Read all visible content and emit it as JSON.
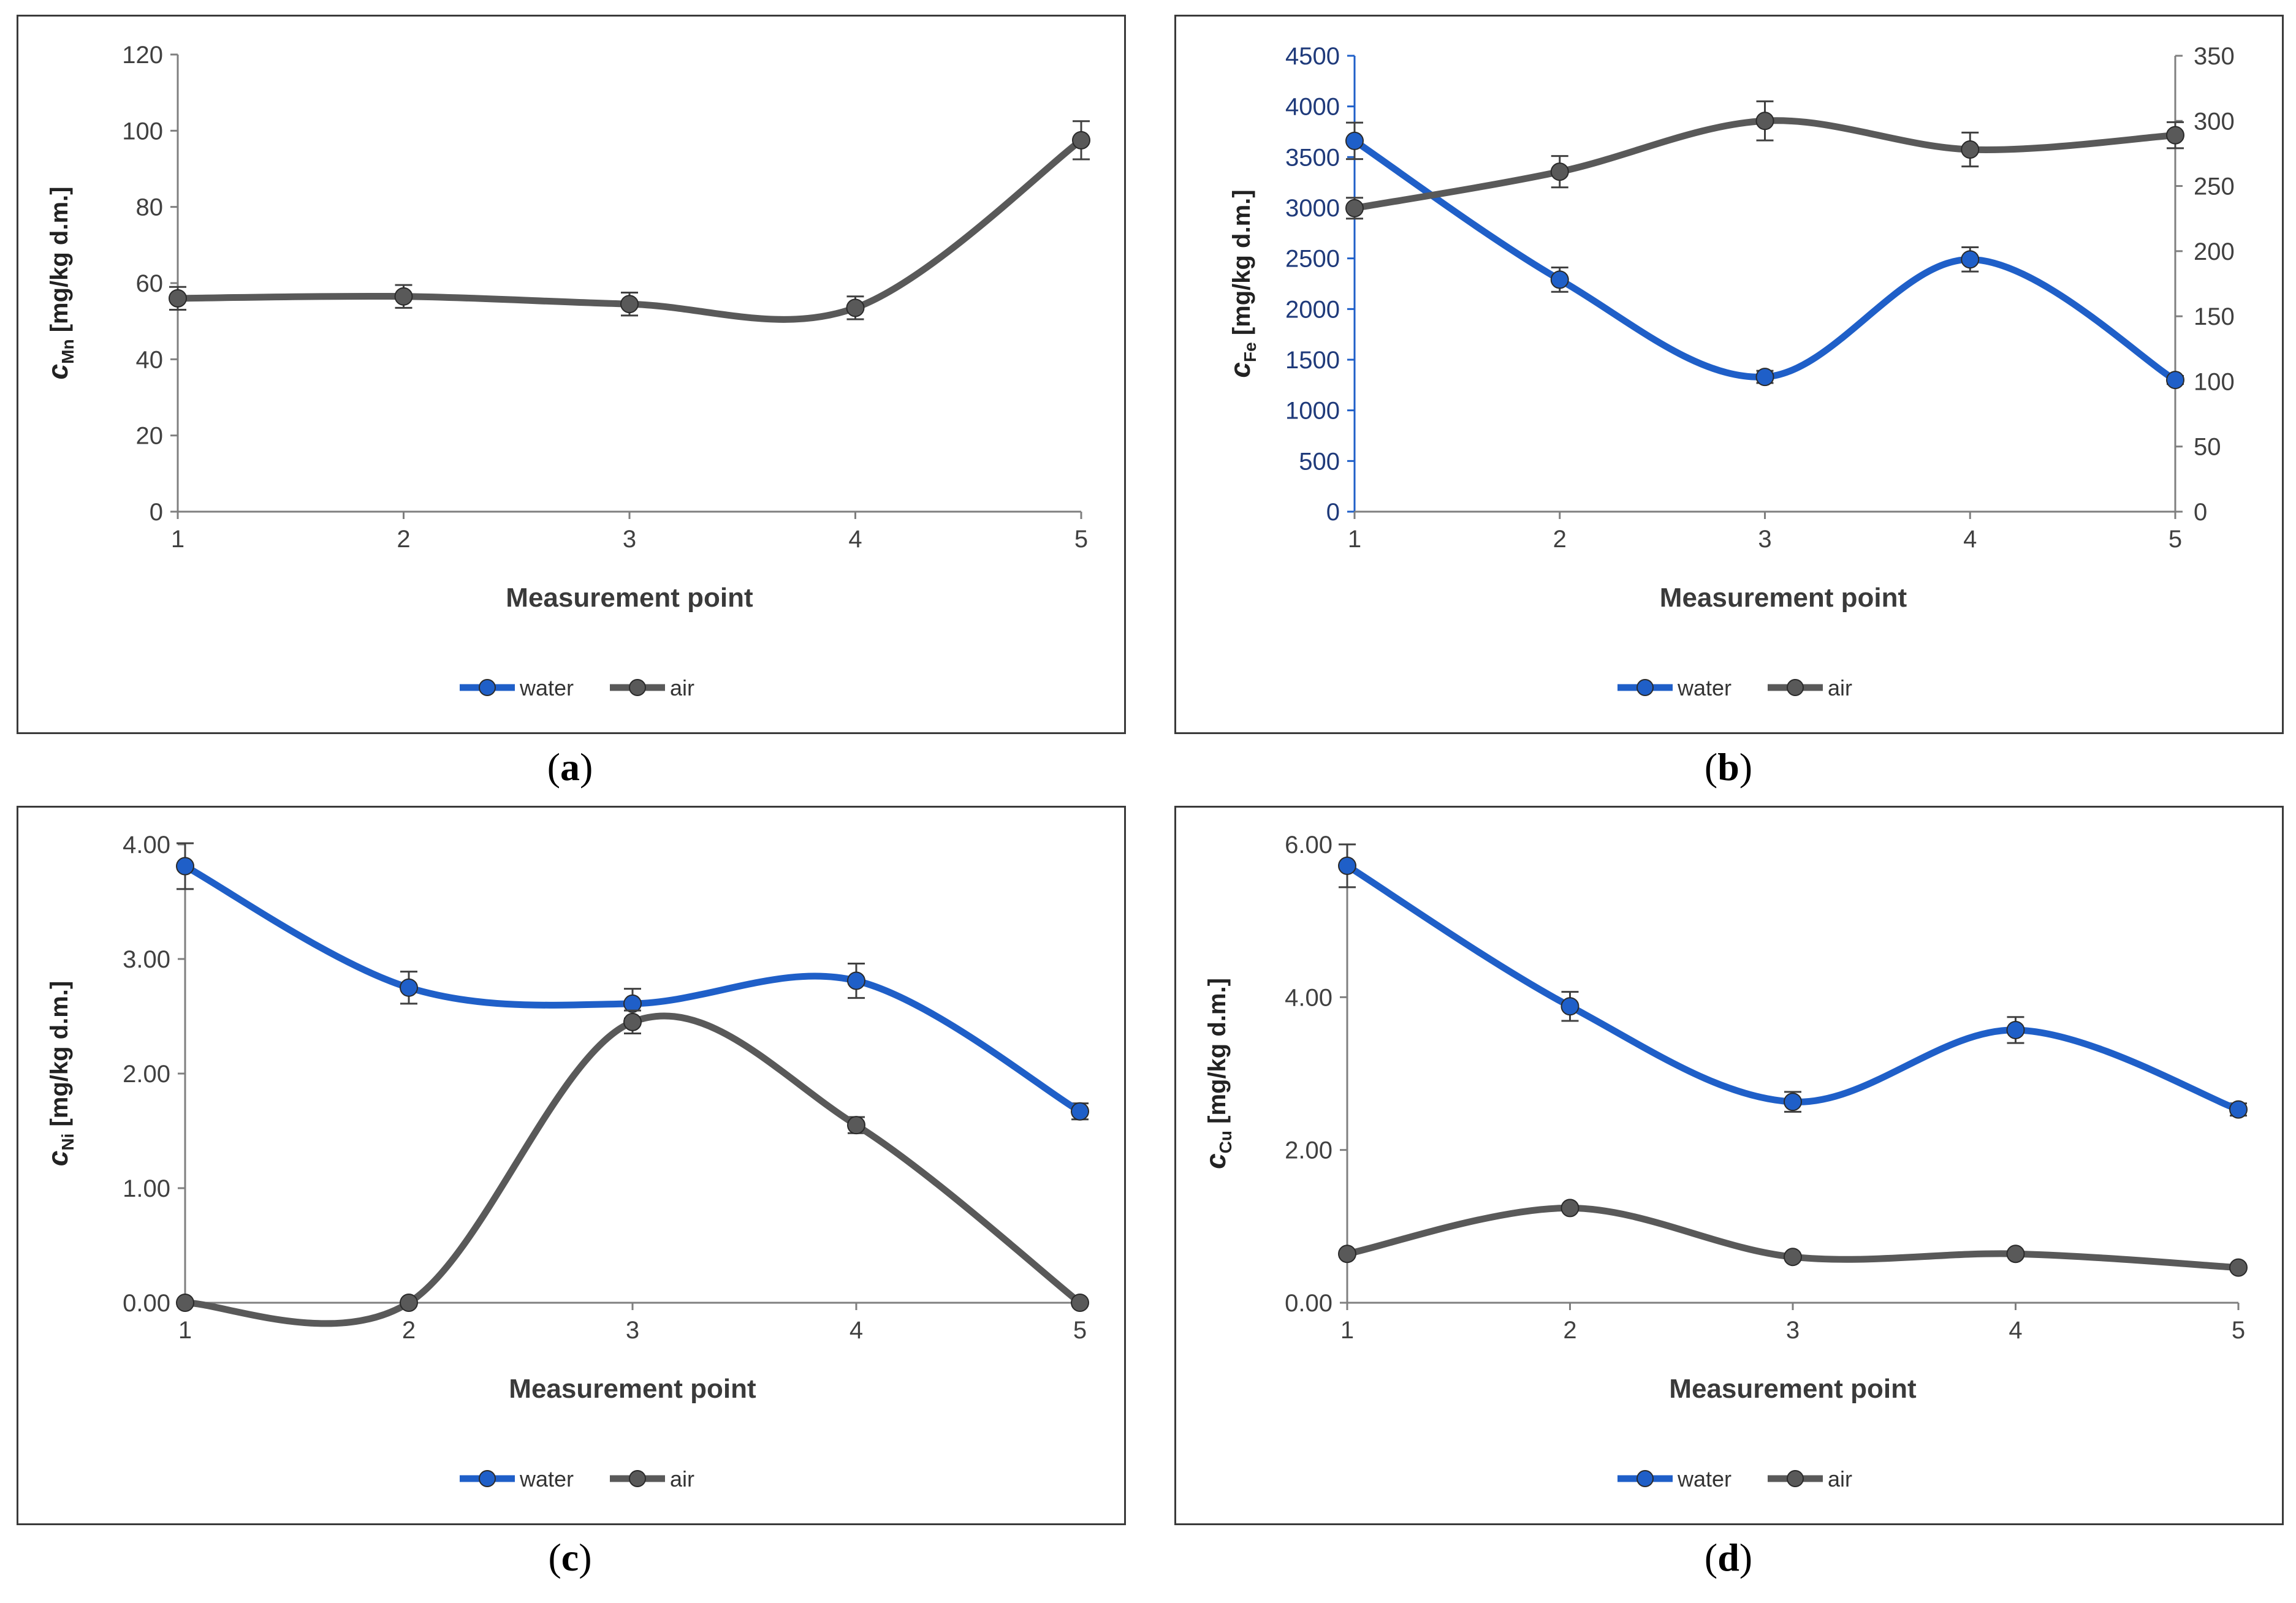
{
  "colors": {
    "water": "#1f5fc8",
    "air": "#595959",
    "axis": "#7f7f7f",
    "blue_axis_text": "#1f3a7a"
  },
  "legend": {
    "water": "water",
    "air": "air"
  },
  "chart_data": [
    {
      "id": "a",
      "type": "line",
      "caption_letter": "a",
      "xlabel": "Measurement point",
      "ylabel_prefix": "c",
      "ylabel_sub": "Mn",
      "ylabel_suffix": " [mg/kg d.m.]",
      "categories": [
        1,
        2,
        3,
        4,
        5
      ],
      "ylim": [
        0,
        120
      ],
      "yticks": [
        0,
        20,
        40,
        60,
        80,
        100,
        120
      ],
      "ytick_labels": [
        "0",
        "20",
        "40",
        "60",
        "80",
        "100",
        "120"
      ],
      "legend_entries": [
        "water",
        "air"
      ],
      "series": [
        {
          "name": "air",
          "axis": "left",
          "values": [
            56,
            56.5,
            54.5,
            53.5,
            97.5
          ],
          "errors": [
            3,
            3,
            3,
            3,
            5
          ]
        }
      ]
    },
    {
      "id": "b",
      "type": "line",
      "caption_letter": "b",
      "xlabel": "Measurement point",
      "ylabel_prefix": "c",
      "ylabel_sub": "Fe",
      "ylabel_suffix": " [mg/kg d.m.]",
      "categories": [
        1,
        2,
        3,
        4,
        5
      ],
      "ylim": [
        0,
        4500
      ],
      "yticks": [
        0,
        500,
        1000,
        1500,
        2000,
        2500,
        3000,
        3500,
        4000,
        4500
      ],
      "ytick_labels": [
        "0",
        "500",
        "1000",
        "1500",
        "2000",
        "2500",
        "3000",
        "3500",
        "4000",
        "4500"
      ],
      "y2lim": [
        0,
        350
      ],
      "y2ticks": [
        0,
        50,
        100,
        150,
        200,
        250,
        300,
        350
      ],
      "y2tick_labels": [
        "0",
        "50",
        "100",
        "150",
        "200",
        "250",
        "300",
        "350"
      ],
      "legend_entries": [
        "water",
        "air"
      ],
      "series": [
        {
          "name": "water",
          "axis": "left",
          "values": [
            3660,
            2290,
            1330,
            2490,
            1300
          ],
          "errors": [
            180,
            120,
            60,
            120,
            40
          ]
        },
        {
          "name": "air",
          "axis": "right",
          "values": [
            233,
            261,
            300,
            278,
            289
          ],
          "errors": [
            8,
            12,
            15,
            13,
            10
          ]
        }
      ]
    },
    {
      "id": "c",
      "type": "line",
      "caption_letter": "c",
      "xlabel": "Measurement point",
      "ylabel_prefix": "c",
      "ylabel_sub": "Ni",
      "ylabel_suffix": " [mg/kg d.m.]",
      "categories": [
        1,
        2,
        3,
        4,
        5
      ],
      "ylim": [
        0,
        4
      ],
      "yticks": [
        0,
        1,
        2,
        3,
        4
      ],
      "ytick_labels": [
        "0.00",
        "1.00",
        "2.00",
        "3.00",
        "4.00"
      ],
      "legend_entries": [
        "water",
        "air"
      ],
      "series": [
        {
          "name": "water",
          "axis": "left",
          "values": [
            3.81,
            2.75,
            2.61,
            2.81,
            1.67
          ],
          "errors": [
            0.2,
            0.14,
            0.13,
            0.15,
            0.07
          ]
        },
        {
          "name": "air",
          "axis": "left",
          "values": [
            0,
            0,
            2.45,
            1.55,
            0
          ],
          "errors": [
            0,
            0,
            0.1,
            0.07,
            0
          ]
        }
      ]
    },
    {
      "id": "d",
      "type": "line",
      "caption_letter": "d",
      "xlabel": "Measurement point",
      "ylabel_prefix": "c",
      "ylabel_sub": "Cu",
      "ylabel_suffix": " [mg/kg d.m.]",
      "categories": [
        1,
        2,
        3,
        4,
        5
      ],
      "ylim": [
        0,
        6
      ],
      "yticks": [
        0,
        2,
        4,
        6
      ],
      "ytick_labels": [
        "0.00",
        "2.00",
        "4.00",
        "6.00"
      ],
      "legend_entries": [
        "water",
        "air"
      ],
      "series": [
        {
          "name": "water",
          "axis": "left",
          "values": [
            5.72,
            3.88,
            2.63,
            3.57,
            2.53
          ],
          "errors": [
            0.28,
            0.19,
            0.13,
            0.17,
            0.08
          ]
        },
        {
          "name": "air",
          "axis": "left",
          "values": [
            0.64,
            1.24,
            0.6,
            0.64,
            0.46
          ],
          "errors": [
            0,
            0,
            0,
            0,
            0
          ]
        }
      ]
    }
  ]
}
